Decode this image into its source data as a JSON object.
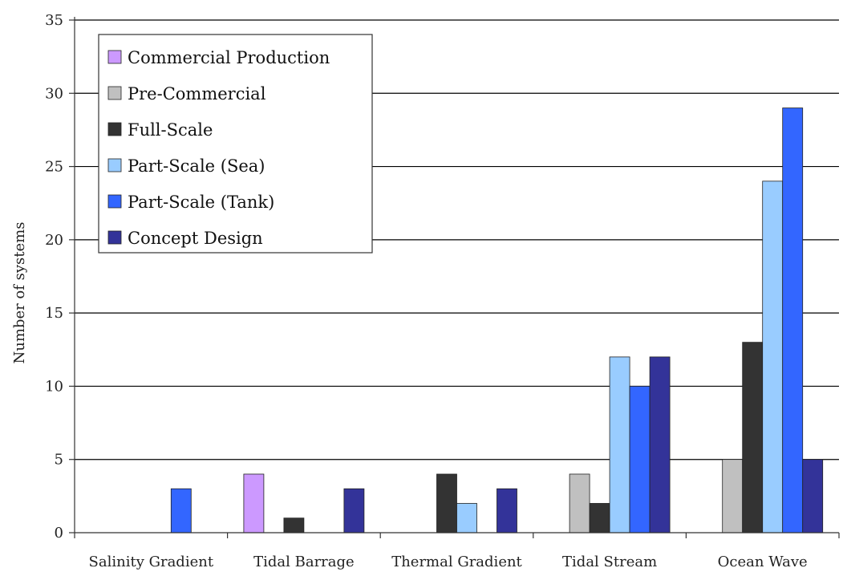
{
  "chart_data": {
    "type": "bar",
    "title": "",
    "xlabel": "",
    "ylabel": "Number of systems",
    "ylim": [
      0,
      35
    ],
    "yticks": [
      0,
      5,
      10,
      15,
      20,
      25,
      30,
      35
    ],
    "grid": "horizontal",
    "legend_position": "top-left",
    "categories": [
      "Salinity Gradient",
      "Tidal Barrage",
      "Thermal Gradient",
      "Tidal Stream",
      "Ocean Wave"
    ],
    "series": [
      {
        "name": "Commercial Production",
        "color": "#cc99ff",
        "values": [
          0,
          4,
          0,
          0,
          0
        ]
      },
      {
        "name": "Pre-Commercial",
        "color": "#c0c0c0",
        "values": [
          0,
          0,
          0,
          4,
          5
        ]
      },
      {
        "name": "Full-Scale",
        "color": "#333333",
        "values": [
          0,
          1,
          4,
          2,
          13
        ]
      },
      {
        "name": "Part-Scale (Sea)",
        "color": "#99ccff",
        "values": [
          0,
          0,
          2,
          12,
          24
        ]
      },
      {
        "name": "Part-Scale (Tank)",
        "color": "#3366ff",
        "values": [
          3,
          0,
          0,
          10,
          29
        ]
      },
      {
        "name": "Concept Design",
        "color": "#333399",
        "values": [
          0,
          3,
          3,
          12,
          5
        ]
      }
    ]
  }
}
